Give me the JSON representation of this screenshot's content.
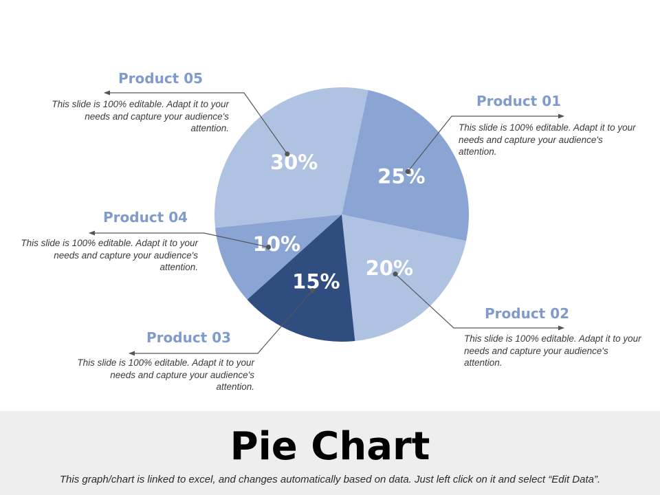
{
  "chart_data": {
    "type": "pie",
    "categories": [
      "Product 01",
      "Product 02",
      "Product 03",
      "Product 04",
      "Product 05"
    ],
    "values": [
      25,
      20,
      15,
      10,
      30
    ],
    "value_labels": [
      "25%",
      "20%",
      "15%",
      "10%",
      "30%"
    ],
    "colors": [
      "#8aa5d4",
      "#b0c2e1",
      "#2f4d7e",
      "#8aa5d4",
      "#b0c2e1"
    ],
    "start_angle_deg": 12,
    "direction": "clockwise"
  },
  "products": [
    {
      "title": "Product 01",
      "desc": "This slide is 100% editable.  Adapt it to your needs and capture your audience's attention."
    },
    {
      "title": "Product 02",
      "desc": "This slide is 100% editable.  Adapt it to your needs and capture your audience's attention."
    },
    {
      "title": "Product 03",
      "desc": "This slide is 100% editable.  Adapt it to your needs and capture your audience's attention."
    },
    {
      "title": "Product 04",
      "desc": "This slide is 100% editable.  Adapt it to your needs and capture your audience's attention."
    },
    {
      "title": "Product 05",
      "desc": "This slide is 100% editable.  Adapt it to your needs and capture your audience's attention."
    }
  ],
  "colors": {
    "title_text": "#7f9acb",
    "leader_line": "#555555",
    "value_label": "#ffffff",
    "footer_bg": "#eeeeee"
  },
  "footer": {
    "title": "Pie Chart",
    "subtitle": "This graph/chart is linked to excel, and changes automatically based on data. Just left click on it and select “Edit Data”."
  }
}
